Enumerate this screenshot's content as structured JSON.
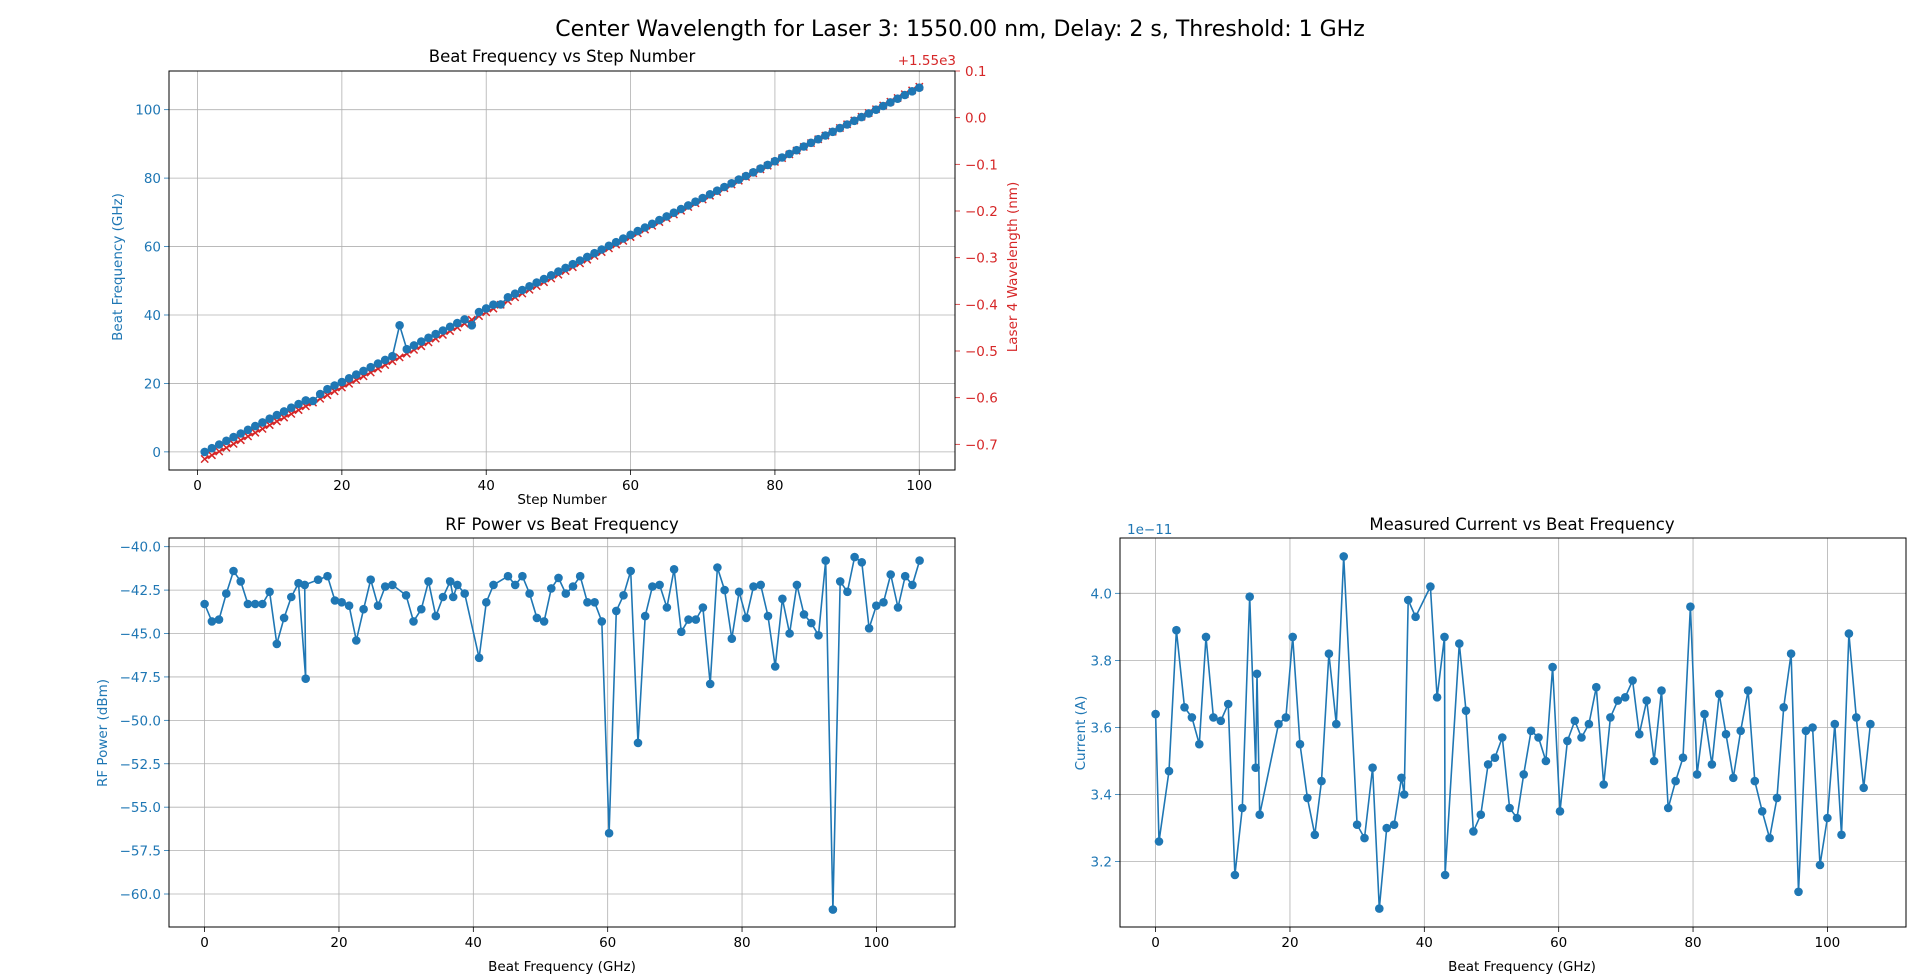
{
  "suptitle": "Center Wavelength for Laser 3: 1550.00 nm, Delay: 2 s, Threshold: 1 GHz",
  "colors": {
    "blue": "#1f77b4",
    "red": "#d62728",
    "grid": "#b0b0b0",
    "axis": "#000000"
  },
  "chart_data": [
    {
      "type": "line",
      "title": "Beat Frequency vs Step Number",
      "xlabel": "Step Number",
      "ylabel": "Beat Frequency (GHz)",
      "y2label": "Laser 4 Wavelength (nm)",
      "y2_offset_label": "+1.55e3",
      "xlim": [
        -3.95,
        104.95
      ],
      "ylim": [
        -5.3,
        111.3
      ],
      "y2lim": [
        -0.755,
        0.1
      ],
      "xticks": [
        0,
        20,
        40,
        60,
        80,
        100
      ],
      "yticks": [
        0,
        20,
        40,
        60,
        80,
        100
      ],
      "y2ticks": [
        -0.7,
        -0.6,
        -0.5,
        -0.4,
        -0.3,
        -0.2,
        -0.1,
        0.0,
        0.1
      ],
      "grid": true,
      "series": [
        {
          "axis": "left",
          "color": "#1f77b4",
          "marker": "circle",
          "step_start": 1,
          "values": [
            0,
            1.08,
            2.15,
            3.23,
            4.3,
            5.38,
            6.45,
            7.53,
            8.6,
            9.68,
            10.75,
            11.83,
            12.9,
            13.98,
            15.05,
            14.9,
            16.9,
            18.3,
            19.4,
            20.4,
            21.51,
            22.58,
            23.66,
            24.73,
            25.81,
            26.88,
            27.96,
            37.0,
            30.0,
            31.1,
            32.26,
            33.33,
            34.41,
            35.48,
            36.56,
            37.63,
            38.71,
            37.0,
            40.86,
            41.93,
            43.0,
            43.1,
            45.16,
            46.23,
            47.31,
            48.38,
            49.46,
            50.53,
            51.61,
            52.68,
            53.76,
            54.83,
            55.91,
            56.98,
            58.06,
            59.13,
            60.21,
            61.28,
            62.36,
            63.43,
            64.51,
            65.58,
            66.66,
            67.73,
            68.81,
            69.88,
            70.96,
            72.03,
            73.11,
            74.18,
            75.26,
            76.33,
            77.41,
            78.48,
            79.56,
            80.63,
            81.71,
            82.78,
            83.86,
            84.93,
            86.01,
            87.08,
            88.16,
            89.23,
            90.31,
            91.38,
            92.46,
            93.53,
            94.61,
            95.68,
            96.76,
            97.83,
            98.91,
            99.98,
            101.06,
            102.13,
            103.21,
            104.28,
            105.36,
            106.43
          ]
        },
        {
          "axis": "right",
          "color": "#d62728",
          "marker": "x",
          "step_start": 1,
          "x_end": 100,
          "y_start": -0.7314,
          "y_end": 0.0664,
          "count": 100
        }
      ]
    },
    {
      "type": "line",
      "title": "RF Power vs Beat Frequency",
      "xlabel": "Beat Frequency (GHz)",
      "ylabel": "RF Power (dBm)",
      "xlim": [
        -5.3,
        111.7
      ],
      "ylim": [
        -61.9,
        -39.5
      ],
      "xticks": [
        0,
        20,
        40,
        60,
        80,
        100
      ],
      "yticks": [
        -60.0,
        -57.5,
        -55.0,
        -52.5,
        -50.0,
        -47.5,
        -45.0,
        -42.5,
        -40.0
      ],
      "grid": true,
      "series": [
        {
          "color": "#1f77b4",
          "marker": "circle",
          "x": [
            0,
            1.08,
            2.15,
            3.23,
            4.3,
            5.38,
            6.45,
            7.53,
            8.6,
            9.68,
            10.75,
            11.83,
            12.9,
            13.98,
            15.05,
            14.9,
            16.9,
            18.3,
            19.4,
            20.4,
            21.51,
            22.58,
            23.66,
            24.73,
            25.81,
            26.88,
            27.96,
            30.0,
            31.1,
            32.26,
            33.33,
            34.41,
            35.48,
            36.56,
            37.0,
            37.63,
            38.71,
            40.86,
            41.93,
            43.0,
            45.16,
            46.23,
            47.31,
            48.38,
            49.46,
            50.53,
            51.61,
            52.68,
            53.76,
            54.83,
            55.91,
            56.98,
            58.06,
            59.13,
            60.21,
            61.28,
            62.36,
            63.43,
            64.51,
            65.58,
            66.66,
            67.73,
            68.81,
            69.88,
            70.96,
            72.03,
            73.11,
            74.18,
            75.26,
            76.33,
            77.41,
            78.48,
            79.56,
            80.63,
            81.71,
            82.78,
            83.86,
            84.93,
            86.01,
            87.08,
            88.16,
            89.23,
            90.31,
            91.38,
            92.46,
            93.53,
            94.61,
            95.68,
            96.76,
            97.83,
            98.91,
            99.98,
            101.06,
            102.13,
            103.21,
            104.28,
            105.36,
            106.43
          ],
          "values": [
            -43.3,
            -44.3,
            -44.2,
            -42.7,
            -41.4,
            -42.0,
            -43.3,
            -43.3,
            -43.3,
            -42.6,
            -45.6,
            -44.1,
            -42.9,
            -42.1,
            -47.6,
            -42.2,
            -41.9,
            -41.7,
            -43.1,
            -43.2,
            -43.4,
            -45.4,
            -43.6,
            -41.9,
            -43.4,
            -42.3,
            -42.2,
            -42.8,
            -44.3,
            -43.6,
            -42.0,
            -44.0,
            -42.9,
            -42.0,
            -42.9,
            -42.2,
            -42.7,
            -46.4,
            -43.2,
            -42.2,
            -41.7,
            -42.2,
            -41.7,
            -42.7,
            -44.1,
            -44.3,
            -42.4,
            -41.8,
            -42.7,
            -42.3,
            -41.7,
            -43.2,
            -43.2,
            -44.3,
            -56.5,
            -43.7,
            -42.8,
            -41.4,
            -51.3,
            -44.0,
            -42.3,
            -42.2,
            -43.5,
            -41.3,
            -44.9,
            -44.2,
            -44.2,
            -43.5,
            -47.9,
            -41.2,
            -42.5,
            -45.3,
            -42.6,
            -44.1,
            -42.3,
            -42.2,
            -44.0,
            -46.9,
            -43.0,
            -45.0,
            -42.2,
            -43.9,
            -44.4,
            -45.1,
            -40.8,
            -60.9,
            -42.0,
            -42.6,
            -40.6,
            -40.9,
            -44.7,
            -43.4,
            -43.2,
            -41.6,
            -43.5,
            -41.7,
            -42.2,
            -40.8
          ]
        }
      ]
    },
    {
      "type": "line",
      "title": "Measured Current vs Beat Frequency",
      "xlabel": "Beat Frequency (GHz)",
      "ylabel": "Current (A)",
      "y_offset_label": "1e−11",
      "xlim": [
        -5.3,
        111.7
      ],
      "ylim": [
        3.005,
        4.165
      ],
      "xticks": [
        0,
        20,
        40,
        60,
        80,
        100
      ],
      "yticks": [
        3.2,
        3.4,
        3.6,
        3.8,
        4.0
      ],
      "ytick_labels": [
        "3.2",
        "3.4",
        "3.6",
        "3.8",
        "4.0"
      ],
      "grid": true,
      "series": [
        {
          "color": "#1f77b4",
          "marker": "circle",
          "x": [
            0,
            0.5,
            2.0,
            3.1,
            4.3,
            5.4,
            6.5,
            7.5,
            8.6,
            9.7,
            10.8,
            11.8,
            12.9,
            14.0,
            14.9,
            15.1,
            15.5,
            18.3,
            19.4,
            20.4,
            21.5,
            22.6,
            23.7,
            24.7,
            25.8,
            26.9,
            28.0,
            30.0,
            31.1,
            32.3,
            33.3,
            34.4,
            35.5,
            36.6,
            37.0,
            37.6,
            38.7,
            40.9,
            41.9,
            43.0,
            43.1,
            45.2,
            46.2,
            47.3,
            48.4,
            49.5,
            50.5,
            51.6,
            52.7,
            53.8,
            54.8,
            55.9,
            57.0,
            58.1,
            59.1,
            60.2,
            61.3,
            62.4,
            63.4,
            64.5,
            65.6,
            66.7,
            67.7,
            68.8,
            69.9,
            71.0,
            72.0,
            73.1,
            74.2,
            75.3,
            76.3,
            77.4,
            78.5,
            79.6,
            80.6,
            81.7,
            82.8,
            83.9,
            84.9,
            86.0,
            87.1,
            88.2,
            89.2,
            90.3,
            91.4,
            92.5,
            93.5,
            94.6,
            95.7,
            96.8,
            97.8,
            98.9,
            100.0,
            101.1,
            102.1,
            103.2,
            104.3,
            105.4,
            106.4
          ],
          "values": [
            3.64,
            3.26,
            3.47,
            3.89,
            3.66,
            3.63,
            3.55,
            3.87,
            3.63,
            3.62,
            3.67,
            3.16,
            3.36,
            3.99,
            3.48,
            3.76,
            3.34,
            3.61,
            3.63,
            3.87,
            3.55,
            3.39,
            3.28,
            3.44,
            3.82,
            3.61,
            4.11,
            3.31,
            3.27,
            3.48,
            3.06,
            3.3,
            3.31,
            3.45,
            3.4,
            3.98,
            3.93,
            4.02,
            3.69,
            3.87,
            3.16,
            3.85,
            3.65,
            3.29,
            3.34,
            3.49,
            3.51,
            3.57,
            3.36,
            3.33,
            3.46,
            3.59,
            3.57,
            3.5,
            3.78,
            3.35,
            3.56,
            3.62,
            3.57,
            3.61,
            3.72,
            3.43,
            3.63,
            3.68,
            3.69,
            3.74,
            3.58,
            3.68,
            3.5,
            3.71,
            3.36,
            3.44,
            3.51,
            3.96,
            3.46,
            3.64,
            3.49,
            3.7,
            3.58,
            3.45,
            3.59,
            3.71,
            3.44,
            3.35,
            3.27,
            3.39,
            3.66,
            3.82,
            3.11,
            3.59,
            3.6,
            3.19,
            3.33,
            3.61,
            3.28,
            3.88,
            3.63,
            3.42,
            3.61
          ]
        }
      ]
    }
  ]
}
